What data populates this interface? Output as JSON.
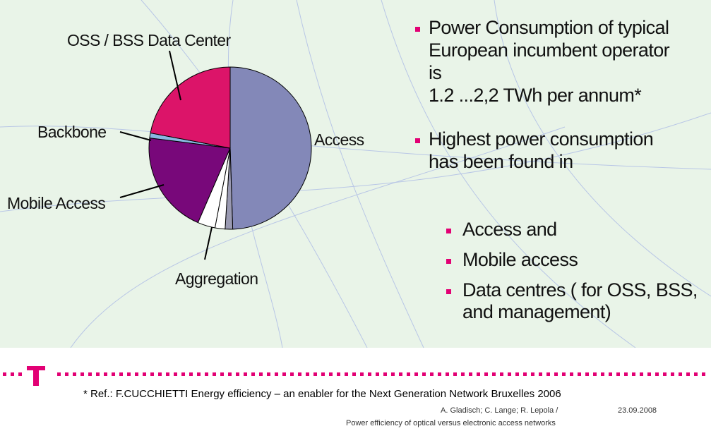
{
  "chart_data": {
    "type": "pie",
    "categories": [
      "Access",
      null,
      null,
      "Aggregation",
      "Mobile Access",
      "Backbone",
      "OSS / BSS Data Center"
    ],
    "values": [
      49.5,
      1.5,
      2,
      3.5,
      20.5,
      1,
      22
    ],
    "colors": [
      "#8388b8",
      "#9a9ab2",
      "#ffffff",
      "#ffffff",
      "#78087a",
      "#8ab8e2",
      "#dc1469"
    ]
  },
  "slide": {
    "points": [
      {
        "lines": [
          "Power Consumption of typical",
          "European incumbent operator",
          "is",
          "1.2 ...2,2 TWh per annum*"
        ]
      },
      {
        "lines": [
          " Highest power consumption",
          "has been found in"
        ]
      }
    ],
    "subpoints": [
      {
        "lines": [
          "Access  and"
        ]
      },
      {
        "lines": [
          "Mobile access"
        ]
      },
      {
        "lines": [
          "Data centres ( for OSS, BSS,",
          "and management)"
        ]
      }
    ],
    "footnote": "* Ref.: F.CUCCHIETTI  Energy efficiency – an enabler for the Next Generation Network Bruxelles 2006",
    "authors": "A. Gladisch; C. Lange; R. Lepola /",
    "date": "23.09.2008",
    "talk_title": "Power efficiency of optical versus electronic access networks"
  }
}
